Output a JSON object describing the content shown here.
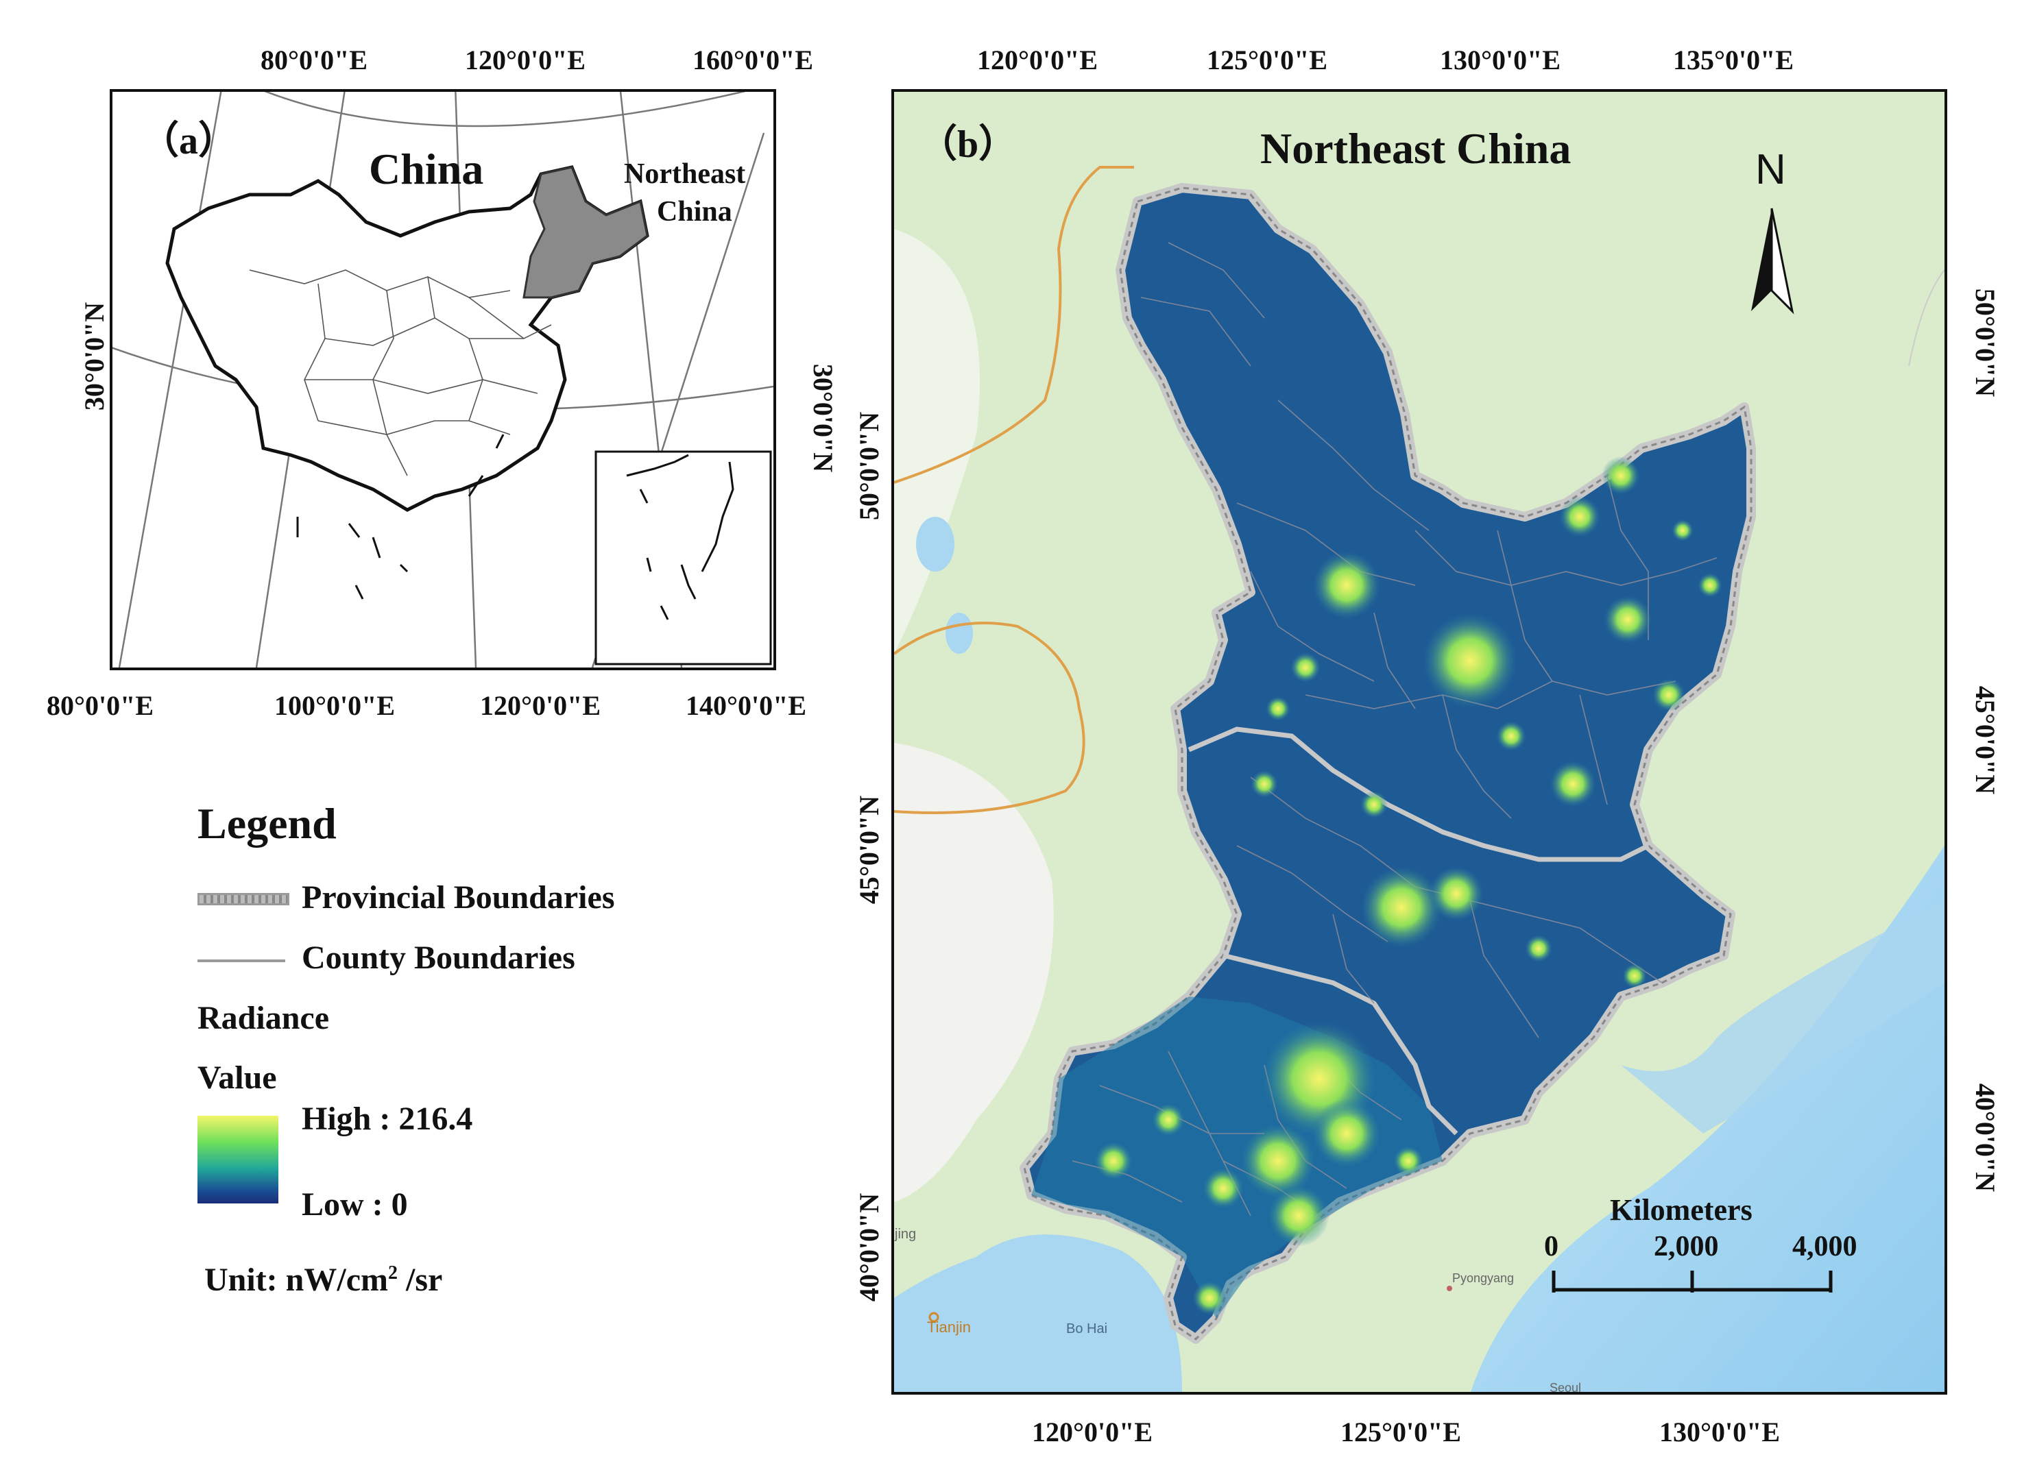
{
  "panel_a": {
    "label": "（a）",
    "country_label": "China",
    "region_label_line1": "Northeast",
    "region_label_line2": "China",
    "top_longitudes": [
      "80°0'0\"E",
      "120°0'0\"E",
      "160°0'0\"E"
    ],
    "bottom_longitudes": [
      "80°0'0\"E",
      "100°0'0\"E",
      "120°0'0\"E",
      "140°0'0\"E"
    ],
    "left_latitude": "30°0'0\"N",
    "right_latitude": "30°0'0\"N"
  },
  "panel_b": {
    "label": "（b）",
    "title": "Northeast China",
    "north_label": "N",
    "top_longitudes": [
      "120°0'0\"E",
      "125°0'0\"E",
      "130°0'0\"E",
      "135°0'0\"E"
    ],
    "bottom_longitudes": [
      "120°0'0\"E",
      "125°0'0\"E",
      "130°0'0\"E"
    ],
    "left_latitudes": [
      "50°0'0\"N",
      "45°0'0\"N",
      "40°0'0\"N"
    ],
    "right_latitudes": [
      "50°0'0\"N",
      "45°0'0\"N",
      "40°0'0\"N"
    ],
    "scale_title": "Kilometers",
    "scale_ticks": [
      "0",
      "2,000",
      "4,000"
    ],
    "place_labels": {
      "tianjin": "Tianjin",
      "bohai": "Bo Hai",
      "pyongyang": "Pyongyang",
      "beijing_partial": "jing",
      "seoul_partial": "Seoul"
    }
  },
  "legend": {
    "title": "Legend",
    "provincial": "Provincial Boundaries",
    "county": "County Boundaries",
    "radiance_line1": "Radiance",
    "radiance_line2": "Value",
    "high": "High : 216.4",
    "low": "Low : 0",
    "unit_prefix": "Unit: nW/cm",
    "unit_sup": "2",
    "unit_suffix": " /sr"
  },
  "colors": {
    "ntl_low": "#1f3f8a",
    "ntl_mid": "#1f7aa8",
    "ntl_high": "#f6f36a",
    "land": "#d7ebc9",
    "sea": "#a8d5f0",
    "frame": "#111111"
  }
}
